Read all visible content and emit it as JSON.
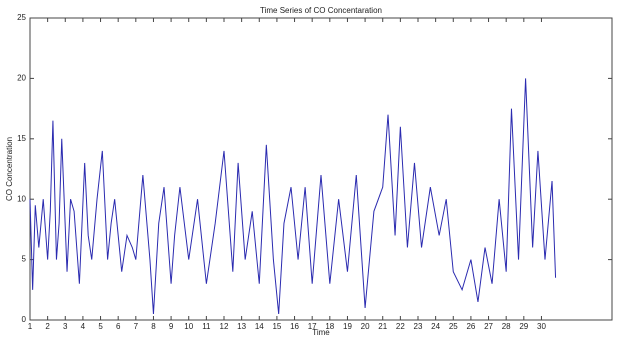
{
  "chart_data": {
    "type": "line",
    "title": "Time Series of CO Concentaration",
    "xlabel": "Time",
    "ylabel": "CO Concentration",
    "x": [
      1,
      1.15,
      1.3,
      1.5,
      1.75,
      2,
      2.15,
      2.3,
      2.5,
      2.65,
      2.8,
      3.1,
      3.3,
      3.5,
      3.8,
      4.1,
      4.3,
      4.5,
      4.8,
      5.1,
      5.4,
      5.6,
      5.8,
      6.2,
      6.5,
      6.8,
      7,
      7.4,
      7.8,
      8,
      8.3,
      8.6,
      9,
      9.2,
      9.5,
      10,
      10.5,
      11,
      11.5,
      12,
      12.5,
      12.8,
      13.2,
      13.6,
      14,
      14.4,
      14.8,
      15.1,
      15.4,
      15.8,
      16.2,
      16.6,
      17,
      17.5,
      18,
      18.5,
      19,
      19.5,
      20,
      20.5,
      21,
      21.3,
      21.7,
      22,
      22.4,
      22.8,
      23.2,
      23.7,
      24.2,
      24.6,
      25,
      25.5,
      26,
      26.4,
      26.8,
      27.2,
      27.6,
      28,
      28.3,
      28.7,
      29.1,
      29.5,
      29.8,
      30.2,
      30.6,
      30.8
    ],
    "series": [
      {
        "name": "CO",
        "color": "#2b2bb0",
        "values": [
          10,
          2.5,
          9.5,
          6,
          10,
          5,
          9,
          16.5,
          5,
          8,
          15,
          4,
          10,
          9,
          3,
          13,
          7,
          5,
          10,
          14,
          5,
          8,
          10,
          4,
          7,
          6,
          5,
          12,
          5,
          0.5,
          8,
          11,
          3,
          7,
          11,
          5,
          10,
          3,
          8,
          14,
          4,
          13,
          5,
          9,
          3,
          14.5,
          5,
          0.5,
          8,
          11,
          5,
          11,
          3,
          12,
          3,
          10,
          4,
          12,
          1,
          9,
          11,
          17,
          7,
          16,
          6,
          13,
          6,
          11,
          7,
          10,
          4,
          2.5,
          5,
          1.5,
          6,
          3,
          10,
          4,
          17.5,
          5,
          20,
          6,
          14,
          5,
          11.5,
          3.5
        ]
      }
    ],
    "xlim": [
      1,
      34
    ],
    "ylim": [
      0,
      25
    ],
    "xticks": [
      1,
      2,
      3,
      4,
      5,
      6,
      7,
      8,
      9,
      10,
      11,
      12,
      13,
      14,
      15,
      16,
      17,
      18,
      19,
      20,
      21,
      22,
      23,
      24,
      25,
      26,
      27,
      28,
      29,
      30
    ],
    "yticks": [
      0,
      5,
      10,
      15,
      20,
      25
    ]
  }
}
